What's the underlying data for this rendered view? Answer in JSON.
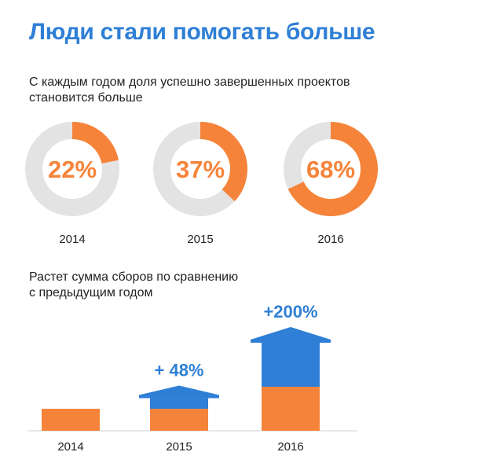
{
  "page": {
    "title": "Люди стали помогать больше",
    "section1": {
      "line1": "С каждым годом доля успешно завершенных проектов",
      "line2": "становится больше"
    },
    "section2": {
      "line1": "Растет сумма сборов по сравнению",
      "line2": "с предыдущим годом"
    }
  },
  "colors": {
    "accent": "#f5843a",
    "blue": "#2f7fd6",
    "ring_bg": "#e3e3e3",
    "text": "#222222"
  },
  "chart_data": [
    {
      "type": "pie",
      "title": "С каждым годом доля успешно завершенных проектов становится больше",
      "unit": "%",
      "items": [
        {
          "year": "2014",
          "value": 22,
          "label": "22%"
        },
        {
          "year": "2015",
          "value": 37,
          "label": "37%"
        },
        {
          "year": "2016",
          "value": 68,
          "label": "68%"
        }
      ]
    },
    {
      "type": "bar",
      "title": "Растет сумма сборов по сравнению с предыдущим годом",
      "categories": [
        "2014",
        "2015",
        "2016"
      ],
      "series": [
        {
          "values": [
            1,
            1,
            2
          ]
        },
        {
          "values": [
            0,
            0.48,
            2.0
          ]
        }
      ],
      "growth_labels": [
        "",
        "+ 48%",
        "+200%"
      ]
    }
  ]
}
